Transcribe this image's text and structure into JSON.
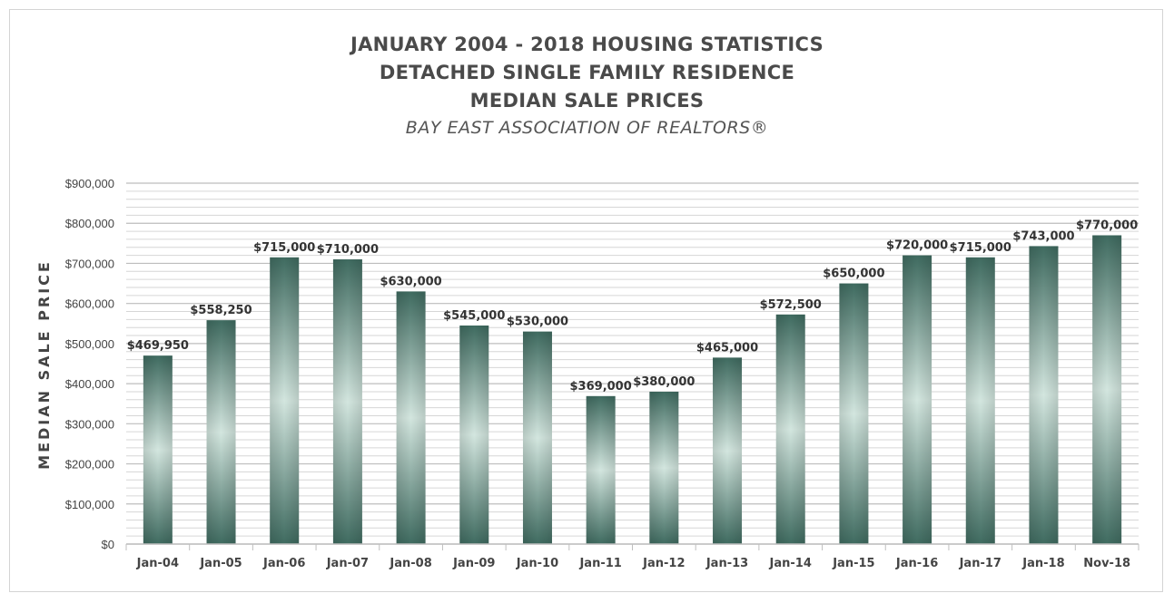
{
  "chart_data": {
    "type": "bar",
    "title_lines": [
      "JANUARY 2004 - 2018 HOUSING STATISTICS",
      "DETACHED SINGLE FAMILY RESIDENCE",
      "MEDIAN SALE PRICES"
    ],
    "subtitle": "BAY EAST ASSOCIATION OF REALTORS®",
    "ylabel": "MEDIAN SALE PRICE",
    "xlabel": "",
    "ylim": [
      0,
      900000
    ],
    "yticks": [
      0,
      100000,
      200000,
      300000,
      400000,
      500000,
      600000,
      700000,
      800000,
      900000
    ],
    "ytick_labels": [
      "$0",
      "$100,000",
      "$200,000",
      "$300,000",
      "$400,000",
      "$500,000",
      "$600,000",
      "$700,000",
      "$800,000",
      "$900,000"
    ],
    "categories": [
      "Jan-04",
      "Jan-05",
      "Jan-06",
      "Jan-07",
      "Jan-08",
      "Jan-09",
      "Jan-10",
      "Jan-11",
      "Jan-12",
      "Jan-13",
      "Jan-14",
      "Jan-15",
      "Jan-16",
      "Jan-17",
      "Jan-18",
      "Nov-18"
    ],
    "values": [
      469950,
      558250,
      715000,
      710000,
      630000,
      545000,
      530000,
      369000,
      380000,
      465000,
      572500,
      650000,
      720000,
      715000,
      743000,
      770000
    ],
    "data_labels": [
      "$469,950",
      "$558,250",
      "$715,000",
      "$710,000",
      "$630,000",
      "$545,000",
      "$530,000",
      "$369,000",
      "$380,000",
      "$465,000",
      "$572,500",
      "$650,000",
      "$720,000",
      "$715,000",
      "$743,000",
      "$770,000"
    ],
    "grid": true,
    "legend": "none",
    "colors": {
      "bar_dark": "#3f6b60",
      "bar_light": "#cfe3dc",
      "grid": "#c8c8c8",
      "axis": "#bfbfbf"
    }
  }
}
